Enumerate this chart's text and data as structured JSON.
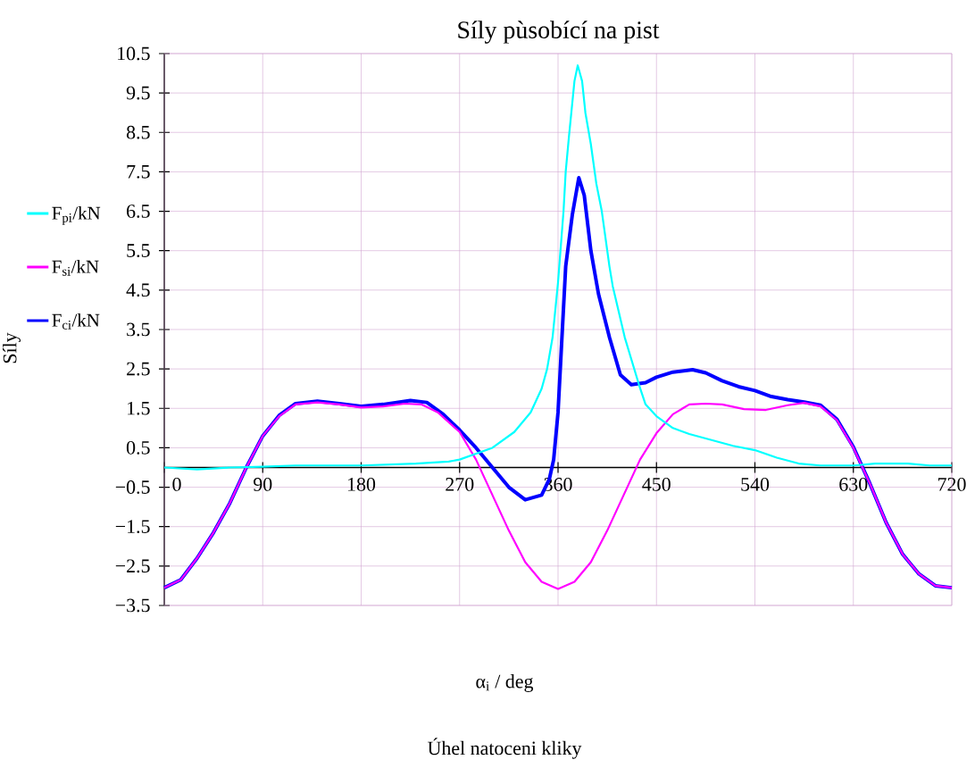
{
  "chart_data": {
    "type": "line",
    "title": "Síly pùsobící na pist",
    "xlabel": "α$_{i}$ / deg",
    "ylabel": "Síly",
    "annotations": [
      "Úhel natoceni kliky"
    ],
    "xlim": [
      0,
      720
    ],
    "ylim": [
      -3.5,
      10.5
    ],
    "xticks": [
      0,
      90,
      180,
      270,
      360,
      450,
      540,
      630,
      720
    ],
    "yticks": [
      {
        "value": -3.5,
        "label": "−3.5"
      },
      {
        "value": -2.5,
        "label": "−2.5"
      },
      {
        "value": -1.5,
        "label": "−1.5"
      },
      {
        "value": -0.5,
        "label": "−0.5"
      },
      0.5,
      1.5,
      2.5,
      3.5,
      4.5,
      5.5,
      6.5,
      7.5,
      8.5,
      9.5,
      10.5
    ],
    "grid": true,
    "legend": "left",
    "marker": "none",
    "line_style": "solid",
    "series": [
      {
        "name": "F$_{pi}$/kN",
        "color": "#00ffff",
        "x": [
          0,
          30,
          60,
          90,
          120,
          180,
          230,
          260,
          270,
          280,
          300,
          320,
          335,
          345,
          350,
          355,
          360,
          365,
          367,
          370,
          375,
          378,
          382,
          385,
          390,
          395,
          400,
          407,
          410,
          421,
          434,
          440,
          450,
          465,
          480,
          500,
          520,
          540,
          560,
          580,
          600,
          630,
          650,
          680,
          700,
          720
        ],
        "values": [
          0.0,
          -0.05,
          0.0,
          0.02,
          0.05,
          0.05,
          0.1,
          0.15,
          0.2,
          0.3,
          0.5,
          0.9,
          1.4,
          2.0,
          2.5,
          3.3,
          4.7,
          6.5,
          7.5,
          8.4,
          9.8,
          10.2,
          9.8,
          9.0,
          8.2,
          7.2,
          6.5,
          5.1,
          4.6,
          3.3,
          2.1,
          1.6,
          1.3,
          1.0,
          0.85,
          0.7,
          0.55,
          0.44,
          0.25,
          0.1,
          0.05,
          0.05,
          0.1,
          0.1,
          0.05,
          0.05
        ]
      },
      {
        "name": "F$_{si}$/kN",
        "color": "#ff00ff",
        "x": [
          0,
          15,
          30,
          45,
          60,
          75,
          90,
          105,
          120,
          140,
          160,
          180,
          200,
          220,
          235,
          250,
          270,
          285,
          300,
          315,
          330,
          345,
          360,
          375,
          390,
          405,
          420,
          435,
          450,
          465,
          480,
          495,
          510,
          530,
          550,
          570,
          585,
          600,
          615,
          630,
          645,
          660,
          675,
          690,
          705,
          720
        ],
        "values": [
          -3.05,
          -2.85,
          -2.3,
          -1.65,
          -0.9,
          0.0,
          0.8,
          1.3,
          1.6,
          1.65,
          1.6,
          1.52,
          1.55,
          1.62,
          1.6,
          1.4,
          0.9,
          0.2,
          -0.7,
          -1.6,
          -2.4,
          -2.9,
          -3.08,
          -2.9,
          -2.4,
          -1.6,
          -0.7,
          0.2,
          0.87,
          1.35,
          1.6,
          1.62,
          1.6,
          1.48,
          1.46,
          1.58,
          1.64,
          1.55,
          1.2,
          0.5,
          -0.4,
          -1.4,
          -2.2,
          -2.7,
          -3.0,
          -3.05
        ]
      },
      {
        "name": "F$_{ci}$/kN",
        "color": "#0000ff",
        "x": [
          0,
          15,
          30,
          45,
          60,
          75,
          90,
          105,
          120,
          140,
          160,
          180,
          200,
          225,
          240,
          255,
          270,
          285,
          300,
          315,
          330,
          345,
          352,
          356,
          360,
          363,
          367,
          373,
          379,
          384,
          390,
          397,
          407,
          417,
          427,
          440,
          450,
          465,
          483,
          495,
          510,
          525,
          540,
          555,
          570,
          585,
          600,
          615,
          630,
          645,
          660,
          675,
          690,
          705,
          720
        ],
        "values": [
          -3.05,
          -2.85,
          -2.3,
          -1.65,
          -0.9,
          0.0,
          0.8,
          1.32,
          1.62,
          1.68,
          1.62,
          1.55,
          1.6,
          1.7,
          1.65,
          1.35,
          0.95,
          0.5,
          0.0,
          -0.5,
          -0.82,
          -0.7,
          -0.3,
          0.2,
          1.4,
          3.0,
          5.1,
          6.4,
          7.35,
          6.9,
          5.5,
          4.4,
          3.3,
          2.35,
          2.1,
          2.15,
          2.29,
          2.42,
          2.48,
          2.4,
          2.2,
          2.05,
          1.95,
          1.8,
          1.72,
          1.66,
          1.58,
          1.22,
          0.52,
          -0.4,
          -1.4,
          -2.2,
          -2.7,
          -3.0,
          -3.05
        ]
      }
    ]
  }
}
